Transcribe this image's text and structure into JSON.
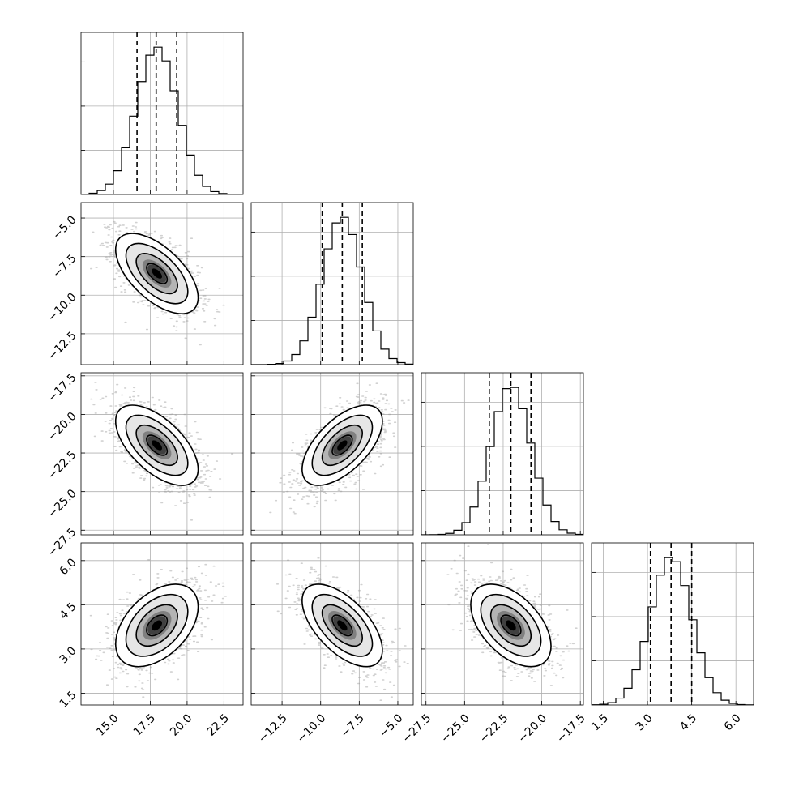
{
  "chart_data": {
    "type": "corner",
    "parameters": [
      {
        "index": 0,
        "range": [
          12.8,
          23.8
        ],
        "ticks": [
          15.0,
          17.5,
          20.0,
          22.5
        ],
        "tick_labels": [
          "15.0",
          "17.5",
          "20.0",
          "22.5"
        ],
        "mean": 17.95,
        "sd": 1.4,
        "quantiles": [
          16.6,
          17.9,
          19.3
        ]
      },
      {
        "index": 1,
        "range": [
          -14.5,
          -4.0
        ],
        "ticks": [
          -12.5,
          -10.0,
          -7.5,
          -5.0
        ],
        "tick_labels": [
          "−12.5",
          "−10.0",
          "−7.5",
          "−5.0"
        ],
        "mean": -8.6,
        "sd": 1.3,
        "quantiles": [
          -9.9,
          -8.6,
          -7.3
        ]
      },
      {
        "index": 2,
        "range": [
          -27.8,
          -17.3
        ],
        "ticks": [
          -27.5,
          -25.0,
          -22.5,
          -20.0,
          -17.5
        ],
        "tick_labels": [
          "−27.5",
          "−25.0",
          "−22.5",
          "−20.0",
          "−17.5"
        ],
        "mean": -22.0,
        "sd": 1.3,
        "quantiles": [
          -23.4,
          -22.0,
          -20.7
        ]
      },
      {
        "index": 3,
        "range": [
          1.1,
          6.6
        ],
        "ticks": [
          1.5,
          3.0,
          4.5,
          6.0
        ],
        "tick_labels": [
          "1.5",
          "3.0",
          "4.5",
          "6.0"
        ],
        "mean": 3.8,
        "sd": 0.7,
        "quantiles": [
          3.1,
          3.8,
          4.5
        ]
      }
    ],
    "correlations": {
      "0-1": -0.6,
      "0-2": -0.6,
      "1-2": 0.6,
      "0-3": 0.45,
      "1-3": -0.6,
      "2-3": -0.5
    },
    "histogram_bins": 20,
    "contour_levels_sigma": [
      0.5,
      1.0,
      1.5,
      2.0
    ],
    "grid": true,
    "colors": {
      "points": "#9a9a9a",
      "lines": "#000000",
      "density_dark": "#000000",
      "density_light": "#ffffff"
    }
  }
}
